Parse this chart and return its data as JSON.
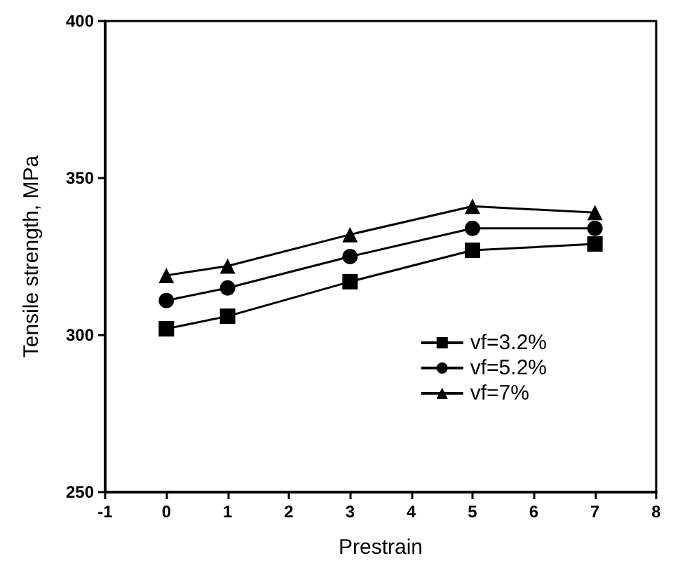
{
  "chart_data": {
    "type": "line",
    "xlabel": "Prestrain",
    "ylabel": "Tensile strength, MPa",
    "xlim": [
      -1,
      8
    ],
    "xticks": [
      -1,
      0,
      1,
      2,
      3,
      4,
      5,
      6,
      7,
      8
    ],
    "ylim": [
      250,
      400
    ],
    "yticks": [
      250,
      300,
      350,
      400
    ],
    "x": [
      0,
      1,
      3,
      5,
      7
    ],
    "series": [
      {
        "name": "vf=3.2%",
        "color": "#000000",
        "marker": "square",
        "values": [
          302,
          306,
          317,
          327,
          329
        ]
      },
      {
        "name": "vf=5.2%",
        "color": "#000000",
        "marker": "circle",
        "values": [
          311,
          315,
          325,
          334,
          334
        ]
      },
      {
        "name": "vf=7%",
        "color": "#000000",
        "marker": "triangle",
        "values": [
          319,
          322,
          332,
          341,
          339
        ]
      }
    ],
    "legend": "bottom right",
    "grid": false,
    "line_style": "solid"
  }
}
